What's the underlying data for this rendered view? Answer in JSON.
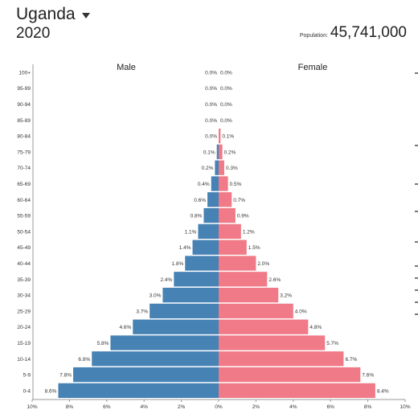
{
  "header": {
    "country": "Uganda",
    "year": "2020",
    "population_label": "Population:",
    "population_value": "45,741,000",
    "icons": {
      "dropdown": "caret-down-icon"
    }
  },
  "chart_data": {
    "type": "bar",
    "orientation": "horizontal",
    "layout": "population-pyramid",
    "categories": [
      "100+",
      "95-99",
      "90-94",
      "85-89",
      "80-84",
      "75-79",
      "70-74",
      "65-69",
      "60-64",
      "55-59",
      "50-54",
      "45-49",
      "40-44",
      "35-39",
      "30-34",
      "25-29",
      "20-24",
      "15-19",
      "10-14",
      "5-9",
      "0-4"
    ],
    "series": [
      {
        "name": "Male",
        "color": "#4682b4",
        "values": [
          0.0,
          0.0,
          0.0,
          0.0,
          0.0,
          0.1,
          0.2,
          0.4,
          0.6,
          0.8,
          1.1,
          1.4,
          1.8,
          2.4,
          3.0,
          3.7,
          4.6,
          5.8,
          6.8,
          7.8,
          8.6
        ],
        "labels": [
          "0.0%",
          "0.0%",
          "0.0%",
          "0.0%",
          "0.0%",
          "0.1%",
          "0.2%",
          "0.4%",
          "0.6%",
          "0.8%",
          "1.1%",
          "1.4%",
          "1.8%",
          "2.4%",
          "3.0%",
          "3.7%",
          "4.6%",
          "5.8%",
          "6.8%",
          "7.8%",
          "8.6%"
        ]
      },
      {
        "name": "Female",
        "color": "#f07a87",
        "values": [
          0.0,
          0.0,
          0.0,
          0.0,
          0.1,
          0.2,
          0.3,
          0.5,
          0.7,
          0.9,
          1.2,
          1.5,
          2.0,
          2.6,
          3.2,
          4.0,
          4.8,
          5.7,
          6.7,
          7.6,
          8.4
        ],
        "labels": [
          "0.0%",
          "0.0%",
          "0.0%",
          "0.0%",
          "0.1%",
          "0.2%",
          "0.3%",
          "0.5%",
          "0.7%",
          "0.9%",
          "1.2%",
          "1.5%",
          "2.0%",
          "2.6%",
          "3.2%",
          "4.0%",
          "4.8%",
          "5.7%",
          "6.7%",
          "7.6%",
          "8.4%"
        ]
      }
    ],
    "x_ticks": [
      "10%",
      "8%",
      "6%",
      "4%",
      "2%",
      "0%",
      "2%",
      "4%",
      "6%",
      "8%",
      "10%"
    ],
    "xlim": [
      -10,
      10
    ],
    "grid": false,
    "legend": "top (side titles)"
  }
}
